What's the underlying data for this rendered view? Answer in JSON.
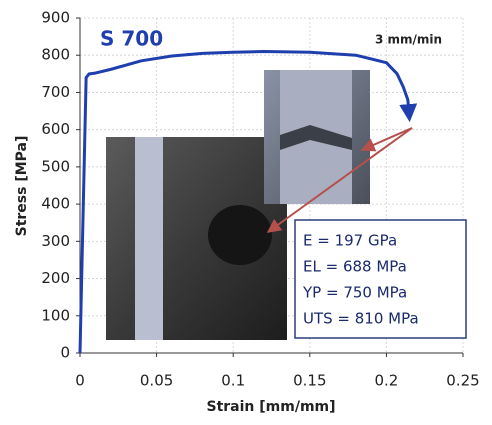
{
  "chart_data": {
    "type": "line",
    "title": "S 700",
    "x_label": "Strain [mm/mm]",
    "y_label": "Stress [MPa]",
    "x": [
      0,
      0.004,
      0.006,
      0.01,
      0.02,
      0.04,
      0.06,
      0.08,
      0.1,
      0.12,
      0.15,
      0.18,
      0.2,
      0.207,
      0.211,
      0.214,
      0.215
    ],
    "values": [
      0,
      740,
      750,
      752,
      762,
      785,
      798,
      805,
      808,
      810,
      808,
      800,
      780,
      750,
      715,
      680,
      630
    ],
    "color": "#1f3fae",
    "xlim": [
      0,
      0.25
    ],
    "xticks": [
      0,
      0.05,
      0.1,
      0.15,
      0.2,
      0.25
    ],
    "ylim": [
      0,
      900
    ],
    "yticks": [
      0,
      100,
      200,
      300,
      400,
      500,
      600,
      700,
      800,
      900
    ],
    "grid": true,
    "annotations": [
      "3 mm/min",
      "E = 197  GPa",
      "EL = 688 MPa",
      "YP = 750 MPa",
      "UTS = 810 MPa"
    ]
  }
}
